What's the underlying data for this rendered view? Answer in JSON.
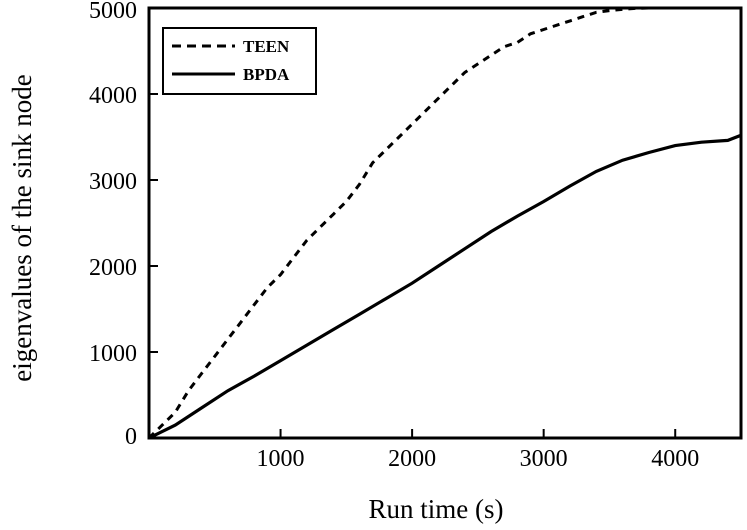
{
  "chart_data": {
    "type": "line",
    "title": "",
    "xlabel": "Run time (s)",
    "ylabel": "eigenvalues of the sink node",
    "xlim": [
      0,
      4500
    ],
    "ylim": [
      0,
      5000
    ],
    "xticks": [
      1000,
      2000,
      3000,
      4000
    ],
    "yticks": [
      0,
      1000,
      2000,
      3000,
      4000,
      5000
    ],
    "x_tick_labels": [
      "1000",
      "2000",
      "3000",
      "4000"
    ],
    "y_tick_labels": [
      "0",
      "1000",
      "2000",
      "3000",
      "4000",
      "5000"
    ],
    "grid": false,
    "legend_position": "top-left",
    "series": [
      {
        "name": "TEEN",
        "style": "dashed",
        "color": "#000000",
        "x": [
          0,
          100,
          200,
          300,
          400,
          500,
          600,
          700,
          800,
          900,
          1000,
          1100,
          1200,
          1300,
          1400,
          1500,
          1600,
          1700,
          1800,
          1900,
          2000,
          2100,
          2200,
          2300,
          2400,
          2500,
          2600,
          2700,
          2800,
          2900,
          3000,
          3100,
          3200,
          3300,
          3400,
          3500,
          3600,
          3700,
          3800
        ],
        "values": [
          0,
          150,
          300,
          550,
          750,
          950,
          1150,
          1350,
          1550,
          1750,
          1900,
          2100,
          2300,
          2450,
          2600,
          2750,
          2950,
          3200,
          3350,
          3500,
          3650,
          3800,
          3950,
          4100,
          4250,
          4350,
          4450,
          4550,
          4600,
          4700,
          4750,
          4800,
          4850,
          4900,
          4950,
          4970,
          4985,
          4995,
          5000
        ]
      },
      {
        "name": "BPDA",
        "style": "solid",
        "color": "#000000",
        "x": [
          0,
          200,
          400,
          600,
          800,
          1000,
          1200,
          1400,
          1600,
          1800,
          2000,
          2200,
          2400,
          2600,
          2800,
          3000,
          3200,
          3400,
          3600,
          3800,
          4000,
          4200,
          4400,
          4500
        ],
        "values": [
          0,
          150,
          350,
          550,
          720,
          900,
          1080,
          1260,
          1440,
          1620,
          1800,
          2000,
          2200,
          2400,
          2580,
          2750,
          2930,
          3100,
          3230,
          3320,
          3400,
          3440,
          3460,
          3520
        ]
      }
    ]
  }
}
